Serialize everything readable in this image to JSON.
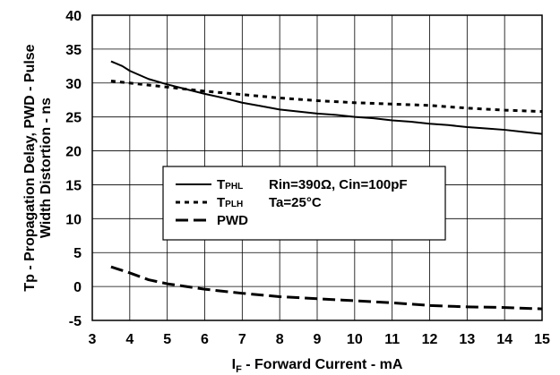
{
  "chart_data": {
    "type": "line",
    "xlabel": {
      "main": "I",
      "sub": "F",
      "rest": " - Forward Current - mA"
    },
    "ylabel_lines": [
      "Tp - Propagation Delay, PWD - Pulse",
      "Width Distortion - ns"
    ],
    "xlim": [
      3,
      15
    ],
    "ylim": [
      -5,
      40
    ],
    "x_ticks": [
      "3",
      "4",
      "5",
      "6",
      "7",
      "8",
      "9",
      "10",
      "11",
      "12",
      "13",
      "14",
      "15"
    ],
    "y_ticks": [
      "-5",
      "0",
      "5",
      "10",
      "15",
      "20",
      "25",
      "30",
      "35",
      "40"
    ],
    "grid": true,
    "legend_position": "center-left",
    "series": [
      {
        "name": "TPHL",
        "label_main": "T",
        "label_sub": "PHL",
        "style": "solid",
        "x": [
          3.5,
          3.8,
          4,
          4.5,
          5,
          5.5,
          6,
          6.5,
          7,
          7.5,
          8,
          8.5,
          9,
          9.5,
          10,
          10.5,
          11,
          11.5,
          12,
          12.5,
          13,
          13.5,
          14,
          14.5,
          15
        ],
        "y": [
          33.2,
          32.5,
          31.8,
          30.6,
          29.8,
          29.1,
          28.4,
          27.8,
          27.1,
          26.6,
          26.1,
          25.8,
          25.5,
          25.3,
          25.0,
          24.8,
          24.5,
          24.3,
          24.0,
          23.8,
          23.5,
          23.3,
          23.1,
          22.8,
          22.5
        ]
      },
      {
        "name": "TPLH",
        "label_main": "T",
        "label_sub": "PLH",
        "style": "dotted",
        "x": [
          3.5,
          4,
          5,
          6,
          7,
          8,
          9,
          10,
          11,
          12,
          13,
          14,
          15
        ],
        "y": [
          30.3,
          30.0,
          29.4,
          28.8,
          28.3,
          27.8,
          27.4,
          27.1,
          26.9,
          26.7,
          26.3,
          26.0,
          25.8
        ]
      },
      {
        "name": "PWD",
        "label_main": "PWD",
        "label_sub": "",
        "style": "dashed",
        "x": [
          3.5,
          4,
          4.5,
          5,
          6,
          7,
          8,
          9,
          10,
          11,
          12,
          13,
          14,
          15
        ],
        "y": [
          2.9,
          2.0,
          1.0,
          0.4,
          -0.4,
          -1.0,
          -1.5,
          -1.8,
          -2.1,
          -2.4,
          -2.8,
          -3.0,
          -3.1,
          -3.3
        ]
      }
    ],
    "annotations": [
      "Rin=390Ω, Cin=100pF",
      "Ta=25°C"
    ],
    "colors": {
      "line": "#000000",
      "grid": "#000000",
      "background": "#ffffff"
    }
  }
}
